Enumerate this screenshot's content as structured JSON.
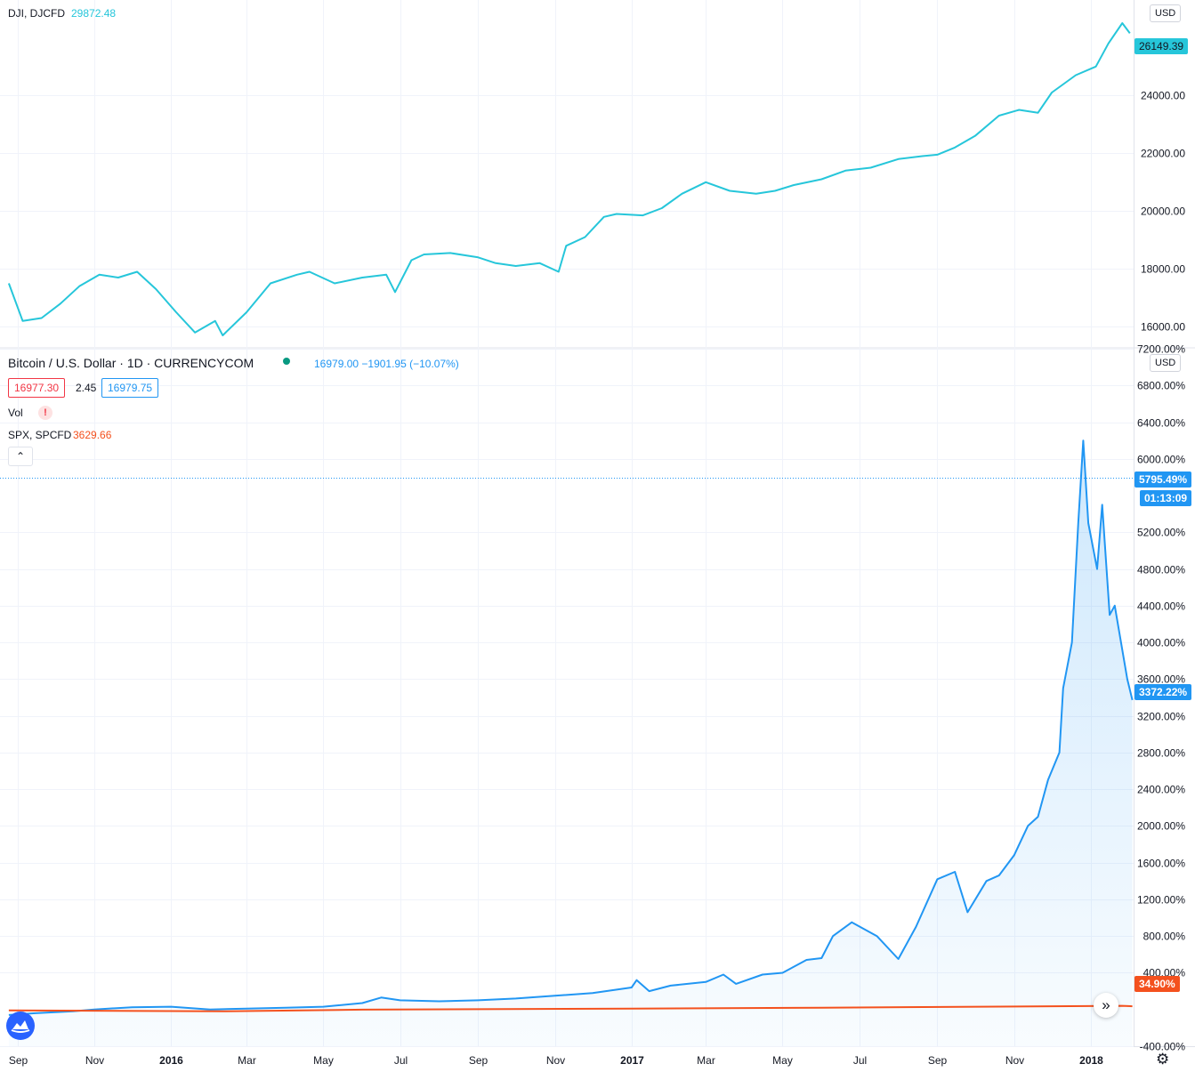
{
  "top_pane": {
    "symbol": "DJI, DJCFD",
    "value": "29872.48",
    "currency": "USD",
    "last_price": "26149.39"
  },
  "bottom_pane": {
    "title": "Bitcoin / U.S. Dollar · 1D · CURRENCYCOM",
    "quote": "16979.00 −1901.95 (−10.07%)",
    "bid": "16977.30",
    "spread": "2.45",
    "ask": "16979.75",
    "vol_label": "Vol",
    "vol_warning": "!",
    "compare_symbol": "SPX, SPCFD",
    "compare_value": "3629.66",
    "currency": "USD",
    "crosshair_pct": "5795.49%",
    "countdown": "01:13:09",
    "btc_last_pct": "3372.22%",
    "spx_last_pct": "34.90%"
  },
  "colors": {
    "dji": "#26c6da",
    "btc": "#2196f3",
    "spx": "#f4511e",
    "grid": "#f0f3fa"
  },
  "icons": {
    "logo": "tradingview-logo-icon",
    "scroll": "chevron-double-right-icon",
    "settings": "gear-icon",
    "collapse": "chevron-up-icon"
  },
  "chart_data": [
    {
      "type": "line",
      "series": [
        {
          "name": "DJI, DJCFD",
          "x": [
            "2015-08-25",
            "2015-09-05",
            "2015-09-20",
            "2015-10-05",
            "2015-10-20",
            "2015-11-05",
            "2015-11-20",
            "2015-12-05",
            "2015-12-20",
            "2016-01-05",
            "2016-01-20",
            "2016-02-05",
            "2016-02-11",
            "2016-03-01",
            "2016-03-20",
            "2016-04-10",
            "2016-04-20",
            "2016-05-10",
            "2016-06-01",
            "2016-06-20",
            "2016-06-27",
            "2016-07-10",
            "2016-07-20",
            "2016-08-10",
            "2016-09-01",
            "2016-09-15",
            "2016-10-01",
            "2016-10-20",
            "2016-11-04",
            "2016-11-10",
            "2016-11-25",
            "2016-12-10",
            "2016-12-20",
            "2017-01-10",
            "2017-01-25",
            "2017-02-10",
            "2017-03-01",
            "2017-03-20",
            "2017-04-10",
            "2017-04-25",
            "2017-05-10",
            "2017-06-01",
            "2017-06-20",
            "2017-07-10",
            "2017-08-01",
            "2017-08-20",
            "2017-09-01",
            "2017-09-15",
            "2017-10-01",
            "2017-10-20",
            "2017-11-05",
            "2017-11-20",
            "2017-12-01",
            "2017-12-20",
            "2018-01-05",
            "2018-01-15",
            "2018-01-26",
            "2018-02-01"
          ],
          "values": [
            17500,
            16200,
            16300,
            16800,
            17400,
            17800,
            17700,
            17900,
            17300,
            16500,
            15800,
            16200,
            15700,
            16500,
            17500,
            17800,
            17900,
            17500,
            17700,
            17800,
            17200,
            18300,
            18500,
            18550,
            18400,
            18200,
            18100,
            18200,
            17900,
            18800,
            19100,
            19800,
            19900,
            19850,
            20100,
            20600,
            21000,
            20700,
            20600,
            20700,
            20900,
            21100,
            21400,
            21500,
            21800,
            21900,
            21950,
            22200,
            22600,
            23300,
            23500,
            23400,
            24100,
            24700,
            25000,
            25800,
            26500,
            26149.39
          ]
        }
      ],
      "y_ticks": [
        "16000.00",
        "18000.00",
        "20000.00",
        "22000.00",
        "24000.00"
      ],
      "ylim": [
        15300,
        27300
      ]
    },
    {
      "type": "area",
      "series": [
        {
          "name": "Bitcoin / U.S. Dollar",
          "x": [
            "2015-08-25",
            "2015-09-15",
            "2015-10-15",
            "2015-11-01",
            "2015-12-01",
            "2016-01-01",
            "2016-02-01",
            "2016-03-01",
            "2016-04-01",
            "2016-05-01",
            "2016-06-01",
            "2016-06-16",
            "2016-07-01",
            "2016-08-01",
            "2016-09-01",
            "2016-10-01",
            "2016-11-01",
            "2016-12-01",
            "2017-01-01",
            "2017-01-05",
            "2017-01-15",
            "2017-02-01",
            "2017-03-01",
            "2017-03-15",
            "2017-03-25",
            "2017-04-15",
            "2017-05-01",
            "2017-05-20",
            "2017-06-01",
            "2017-06-10",
            "2017-06-25",
            "2017-07-15",
            "2017-08-01",
            "2017-08-15",
            "2017-09-01",
            "2017-09-15",
            "2017-09-25",
            "2017-10-10",
            "2017-10-20",
            "2017-11-01",
            "2017-11-12",
            "2017-11-20",
            "2017-11-28",
            "2017-12-07",
            "2017-12-10",
            "2017-12-17",
            "2017-12-22",
            "2017-12-26",
            "2017-12-30",
            "2018-01-06",
            "2018-01-10",
            "2018-01-16",
            "2018-01-20",
            "2018-01-30",
            "2018-02-03"
          ],
          "values": [
            -60,
            -40,
            -20,
            0,
            25,
            30,
            0,
            10,
            20,
            30,
            70,
            130,
            100,
            90,
            100,
            120,
            150,
            180,
            240,
            320,
            200,
            260,
            300,
            380,
            280,
            380,
            400,
            540,
            560,
            800,
            950,
            800,
            550,
            900,
            1420,
            1500,
            1060,
            1400,
            1460,
            1680,
            2000,
            2100,
            2500,
            2800,
            3500,
            4000,
            5300,
            6200,
            5300,
            4800,
            5500,
            4300,
            4400,
            3600,
            3372.22
          ]
        },
        {
          "name": "SPX, SPCFD",
          "x": [
            "2015-08-25",
            "2016-02-11",
            "2016-06-01",
            "2017-01-01",
            "2017-06-01",
            "2018-01-26",
            "2018-02-03"
          ],
          "values": [
            -10,
            -20,
            -2,
            10,
            20,
            40,
            34.9
          ]
        }
      ],
      "y_ticks": [
        "-400.00%",
        "400.00%",
        "800.00%",
        "1200.00%",
        "1600.00%",
        "2000.00%",
        "2400.00%",
        "2800.00%",
        "3200.00%",
        "3600.00%",
        "4000.00%",
        "4400.00%",
        "4800.00%",
        "5200.00%",
        "6000.00%",
        "6400.00%",
        "6800.00%",
        "7200.00%"
      ],
      "ylim": [
        -400,
        7200
      ]
    }
  ],
  "x_axis_labels": [
    "Sep",
    "Nov",
    "2016",
    "Mar",
    "May",
    "Jul",
    "Sep",
    "Nov",
    "2017",
    "Mar",
    "May",
    "Jul",
    "Sep",
    "Nov",
    "2018"
  ]
}
